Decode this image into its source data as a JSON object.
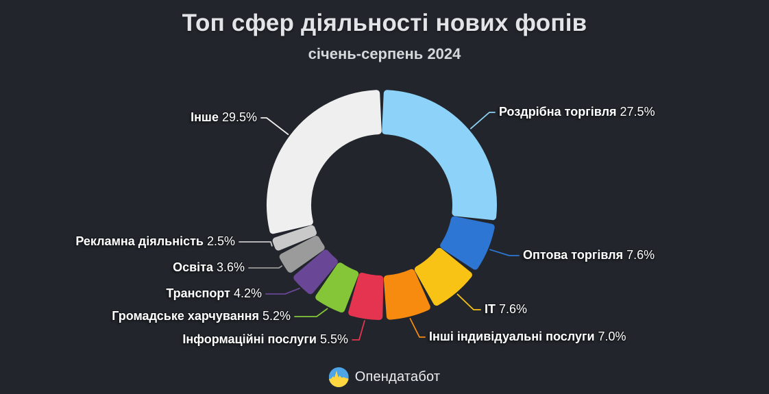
{
  "title": "Топ сфер діяльності нових фопів",
  "subtitle": "січень-серпень 2024",
  "footer": {
    "brand": "Опендатабот"
  },
  "theme": {
    "background": "#22262c",
    "title_color": "#e2e4e7",
    "label_color": "#ffffff",
    "logo_blue": "#4da5e8",
    "logo_yellow": "#ffd640"
  },
  "chart_data": {
    "type": "pie",
    "donut": true,
    "title": "Топ сфер діяльності нових фопів",
    "subtitle": "січень-серпень 2024",
    "start_angle_deg": 0,
    "direction": "clockwise",
    "inner_radius_ratio": 0.61,
    "legend": "callout-labels",
    "slices": [
      {
        "label": "Роздрібна торгівля",
        "value": 27.5,
        "pct_label": "27.5%",
        "color": "#8dd2f8"
      },
      {
        "label": "Оптова торгівля",
        "value": 7.6,
        "pct_label": "7.6%",
        "color": "#2d76d4"
      },
      {
        "label": "IT",
        "value": 7.6,
        "pct_label": "7.6%",
        "color": "#f8c315"
      },
      {
        "label": "Інші індивідуальні послуги",
        "value": 7.0,
        "pct_label": "7.0%",
        "color": "#f68b10"
      },
      {
        "label": "Інформаційні послуги",
        "value": 5.5,
        "pct_label": "5.5%",
        "color": "#e53450"
      },
      {
        "label": "Громадське харчування",
        "value": 5.2,
        "pct_label": "5.2%",
        "color": "#84c637"
      },
      {
        "label": "Транспорт",
        "value": 4.2,
        "pct_label": "4.2%",
        "color": "#6a4796"
      },
      {
        "label": "Освіта",
        "value": 3.6,
        "pct_label": "3.6%",
        "color": "#9b9b9b"
      },
      {
        "label": "Рекламна діяльність",
        "value": 2.5,
        "pct_label": "2.5%",
        "color": "#c9c9c9"
      },
      {
        "label": "Інше",
        "value": 29.5,
        "pct_label": "29.5%",
        "color": "#efefef"
      }
    ]
  }
}
